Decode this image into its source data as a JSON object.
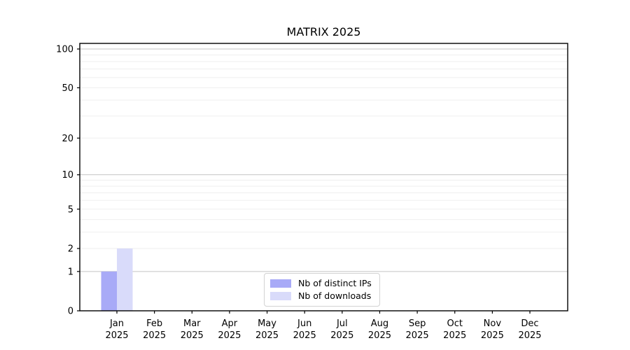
{
  "chart_data": {
    "type": "bar",
    "title": "MATRIX 2025",
    "x": {
      "months": [
        "Jan",
        "Feb",
        "Mar",
        "Apr",
        "May",
        "Jun",
        "Jul",
        "Aug",
        "Sep",
        "Oct",
        "Nov",
        "Dec"
      ],
      "year": "2025"
    },
    "categories": [
      "Jan 2025",
      "Feb 2025",
      "Mar 2025",
      "Apr 2025",
      "May 2025",
      "Jun 2025",
      "Jul 2025",
      "Aug 2025",
      "Sep 2025",
      "Oct 2025",
      "Nov 2025",
      "Dec 2025"
    ],
    "series": [
      {
        "name": "Nb of distinct IPs",
        "color": "#a8aaf7",
        "values": [
          1,
          0,
          0,
          0,
          0,
          0,
          0,
          0,
          0,
          0,
          0,
          0
        ]
      },
      {
        "name": "Nb of downloads",
        "color": "#d9dbfa",
        "values": [
          2,
          0,
          0,
          0,
          0,
          0,
          0,
          0,
          0,
          0,
          0,
          0
        ]
      }
    ],
    "y_axis": {
      "scale": "log1p",
      "ylim": [
        0,
        100
      ],
      "ticks": [
        0,
        1,
        2,
        5,
        10,
        20,
        50,
        100
      ],
      "major_grid": [
        1,
        10,
        100
      ],
      "minor_grid": [
        2,
        3,
        4,
        5,
        6,
        7,
        8,
        9,
        20,
        30,
        40,
        50,
        60,
        70,
        80,
        90
      ]
    },
    "xlabel": "",
    "ylabel": "",
    "legend": {
      "position": "lower center",
      "entries": [
        "Nb of distinct IPs",
        "Nb of downloads"
      ]
    },
    "colors": {
      "bar_distinct_ips": "#a8aaf7",
      "bar_downloads": "#d9dbfa",
      "grid_major": "#c4c4c4",
      "grid_minor": "#efefef",
      "spine": "#000000",
      "text": "#000000",
      "legend_border": "#d2d2d2"
    }
  }
}
